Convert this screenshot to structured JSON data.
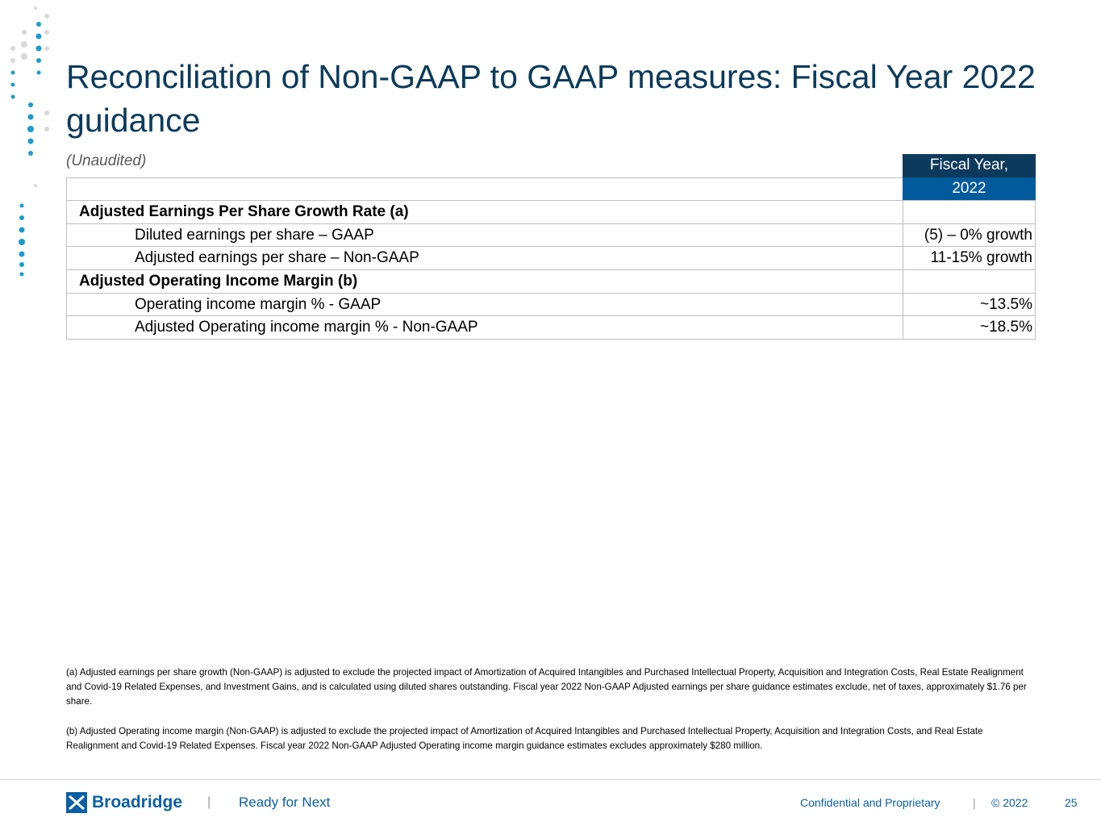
{
  "title": "Reconciliation of Non-GAAP to GAAP measures: Fiscal Year 2022 guidance",
  "subtitle": "(Unaudited)",
  "table": {
    "header": [
      "Fiscal Year,",
      "2022"
    ],
    "sections": [
      {
        "heading": "Adjusted Earnings Per Share Growth Rate (a)",
        "rows": [
          {
            "label": "Diluted earnings per share – GAAP",
            "value": "(5) – 0% growth"
          },
          {
            "label": "Adjusted earnings per share – Non-GAAP",
            "value": "11-15% growth"
          }
        ]
      },
      {
        "heading": "Adjusted Operating Income Margin (b)",
        "rows": [
          {
            "label": "Operating income margin % - GAAP",
            "value": "~13.5%"
          },
          {
            "label": "Adjusted Operating income margin % - Non-GAAP",
            "value": "~18.5%"
          }
        ]
      }
    ]
  },
  "footnotes": [
    "(a) Adjusted earnings per share growth (Non-GAAP) is adjusted to exclude the projected impact of Amortization of Acquired Intangibles and Purchased Intellectual Property, Acquisition and Integration Costs, Real Estate Realignment and Covid-19 Related Expenses, and Investment Gains, and is calculated using diluted shares outstanding. Fiscal year 2022 Non-GAAP Adjusted earnings per share guidance estimates exclude, net of taxes, approximately $1.76 per share.",
    "(b) Adjusted Operating income margin (Non-GAAP) is adjusted to exclude the projected impact of Amortization of Acquired Intangibles and Purchased Intellectual Property, Acquisition and Integration Costs, and Real Estate Realignment and Covid-19 Related Expenses. Fiscal year 2022 Non-GAAP Adjusted Operating income margin guidance estimates excludes approximately $280 million."
  ],
  "footer": {
    "logo": "Broadridge",
    "tagline": "Ready for Next",
    "confidential": "Confidential and Proprietary",
    "copyright": "© 2022",
    "page": "25"
  }
}
